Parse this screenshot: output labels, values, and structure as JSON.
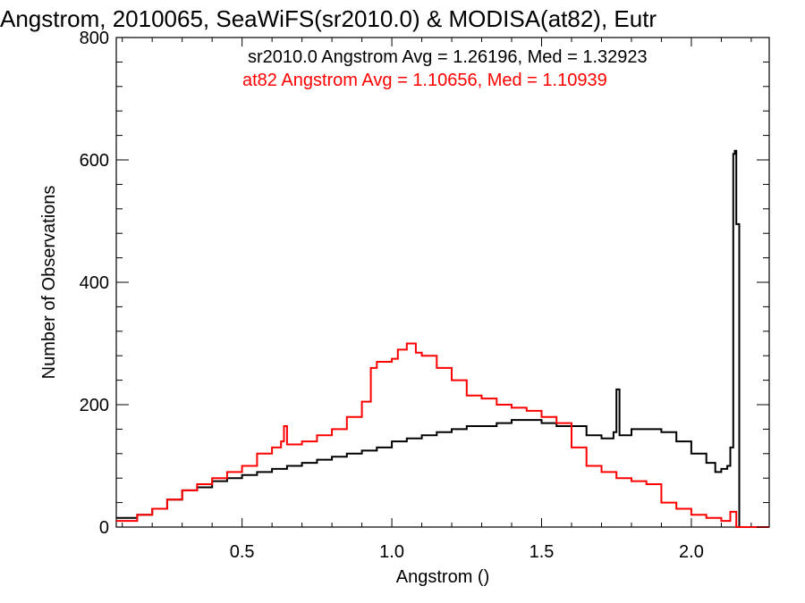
{
  "chart_data": {
    "type": "line",
    "title": "Angstrom, 2010065, SeaWiFS(sr2010.0) & MODISA(at82), Eutr",
    "xlabel": "Angstrom ()",
    "ylabel": "Number of Observations",
    "xlim": [
      0.08,
      2.26
    ],
    "ylim": [
      0,
      800
    ],
    "xticks": [
      0.5,
      1.0,
      1.5,
      2.0
    ],
    "xtick_labels": [
      "0.5",
      "1.0",
      "1.5",
      "2.0"
    ],
    "yticks": [
      0,
      200,
      400,
      600,
      800
    ],
    "ytick_labels": [
      "0",
      "200",
      "400",
      "600",
      "800"
    ],
    "annotations": [
      {
        "text": "sr2010.0 Angstrom Avg = 1.26196, Med = 1.32923",
        "color": "#000000"
      },
      {
        "text": "at82 Angstrom Avg = 1.10656, Med = 1.10939",
        "color": "#ff0000"
      }
    ],
    "grid": false,
    "step": true,
    "series": [
      {
        "color": "#000000",
        "x": [
          0.08,
          0.15,
          0.2,
          0.25,
          0.3,
          0.35,
          0.4,
          0.45,
          0.5,
          0.55,
          0.6,
          0.65,
          0.7,
          0.75,
          0.8,
          0.85,
          0.9,
          0.95,
          1.0,
          1.05,
          1.1,
          1.15,
          1.2,
          1.25,
          1.3,
          1.35,
          1.4,
          1.45,
          1.5,
          1.55,
          1.6,
          1.65,
          1.7,
          1.74,
          1.75,
          1.76,
          1.8,
          1.85,
          1.9,
          1.95,
          2.0,
          2.05,
          2.08,
          2.1,
          2.12,
          2.13,
          2.14,
          2.145,
          2.15,
          2.16,
          2.26
        ],
        "y": [
          15,
          20,
          30,
          45,
          60,
          65,
          75,
          80,
          85,
          90,
          95,
          100,
          105,
          110,
          115,
          120,
          125,
          130,
          140,
          145,
          150,
          155,
          160,
          165,
          165,
          170,
          175,
          175,
          170,
          165,
          165,
          150,
          145,
          155,
          225,
          150,
          160,
          160,
          155,
          140,
          120,
          105,
          90,
          95,
          100,
          130,
          610,
          615,
          495,
          0,
          0
        ]
      },
      {
        "color": "#ff0000",
        "x": [
          0.08,
          0.15,
          0.2,
          0.25,
          0.3,
          0.35,
          0.4,
          0.45,
          0.5,
          0.55,
          0.6,
          0.63,
          0.64,
          0.65,
          0.7,
          0.75,
          0.8,
          0.85,
          0.9,
          0.93,
          0.95,
          1.0,
          1.02,
          1.05,
          1.08,
          1.1,
          1.15,
          1.2,
          1.25,
          1.3,
          1.35,
          1.4,
          1.45,
          1.5,
          1.55,
          1.6,
          1.65,
          1.7,
          1.75,
          1.8,
          1.85,
          1.9,
          1.95,
          2.0,
          2.05,
          2.1,
          2.13,
          2.15,
          2.16,
          2.26
        ],
        "y": [
          10,
          20,
          30,
          45,
          60,
          70,
          80,
          90,
          100,
          120,
          130,
          140,
          165,
          135,
          140,
          150,
          160,
          180,
          205,
          260,
          270,
          275,
          290,
          300,
          285,
          280,
          260,
          240,
          215,
          210,
          200,
          195,
          190,
          180,
          170,
          130,
          100,
          90,
          80,
          75,
          70,
          40,
          30,
          20,
          15,
          10,
          25,
          0,
          0,
          0
        ]
      }
    ]
  }
}
